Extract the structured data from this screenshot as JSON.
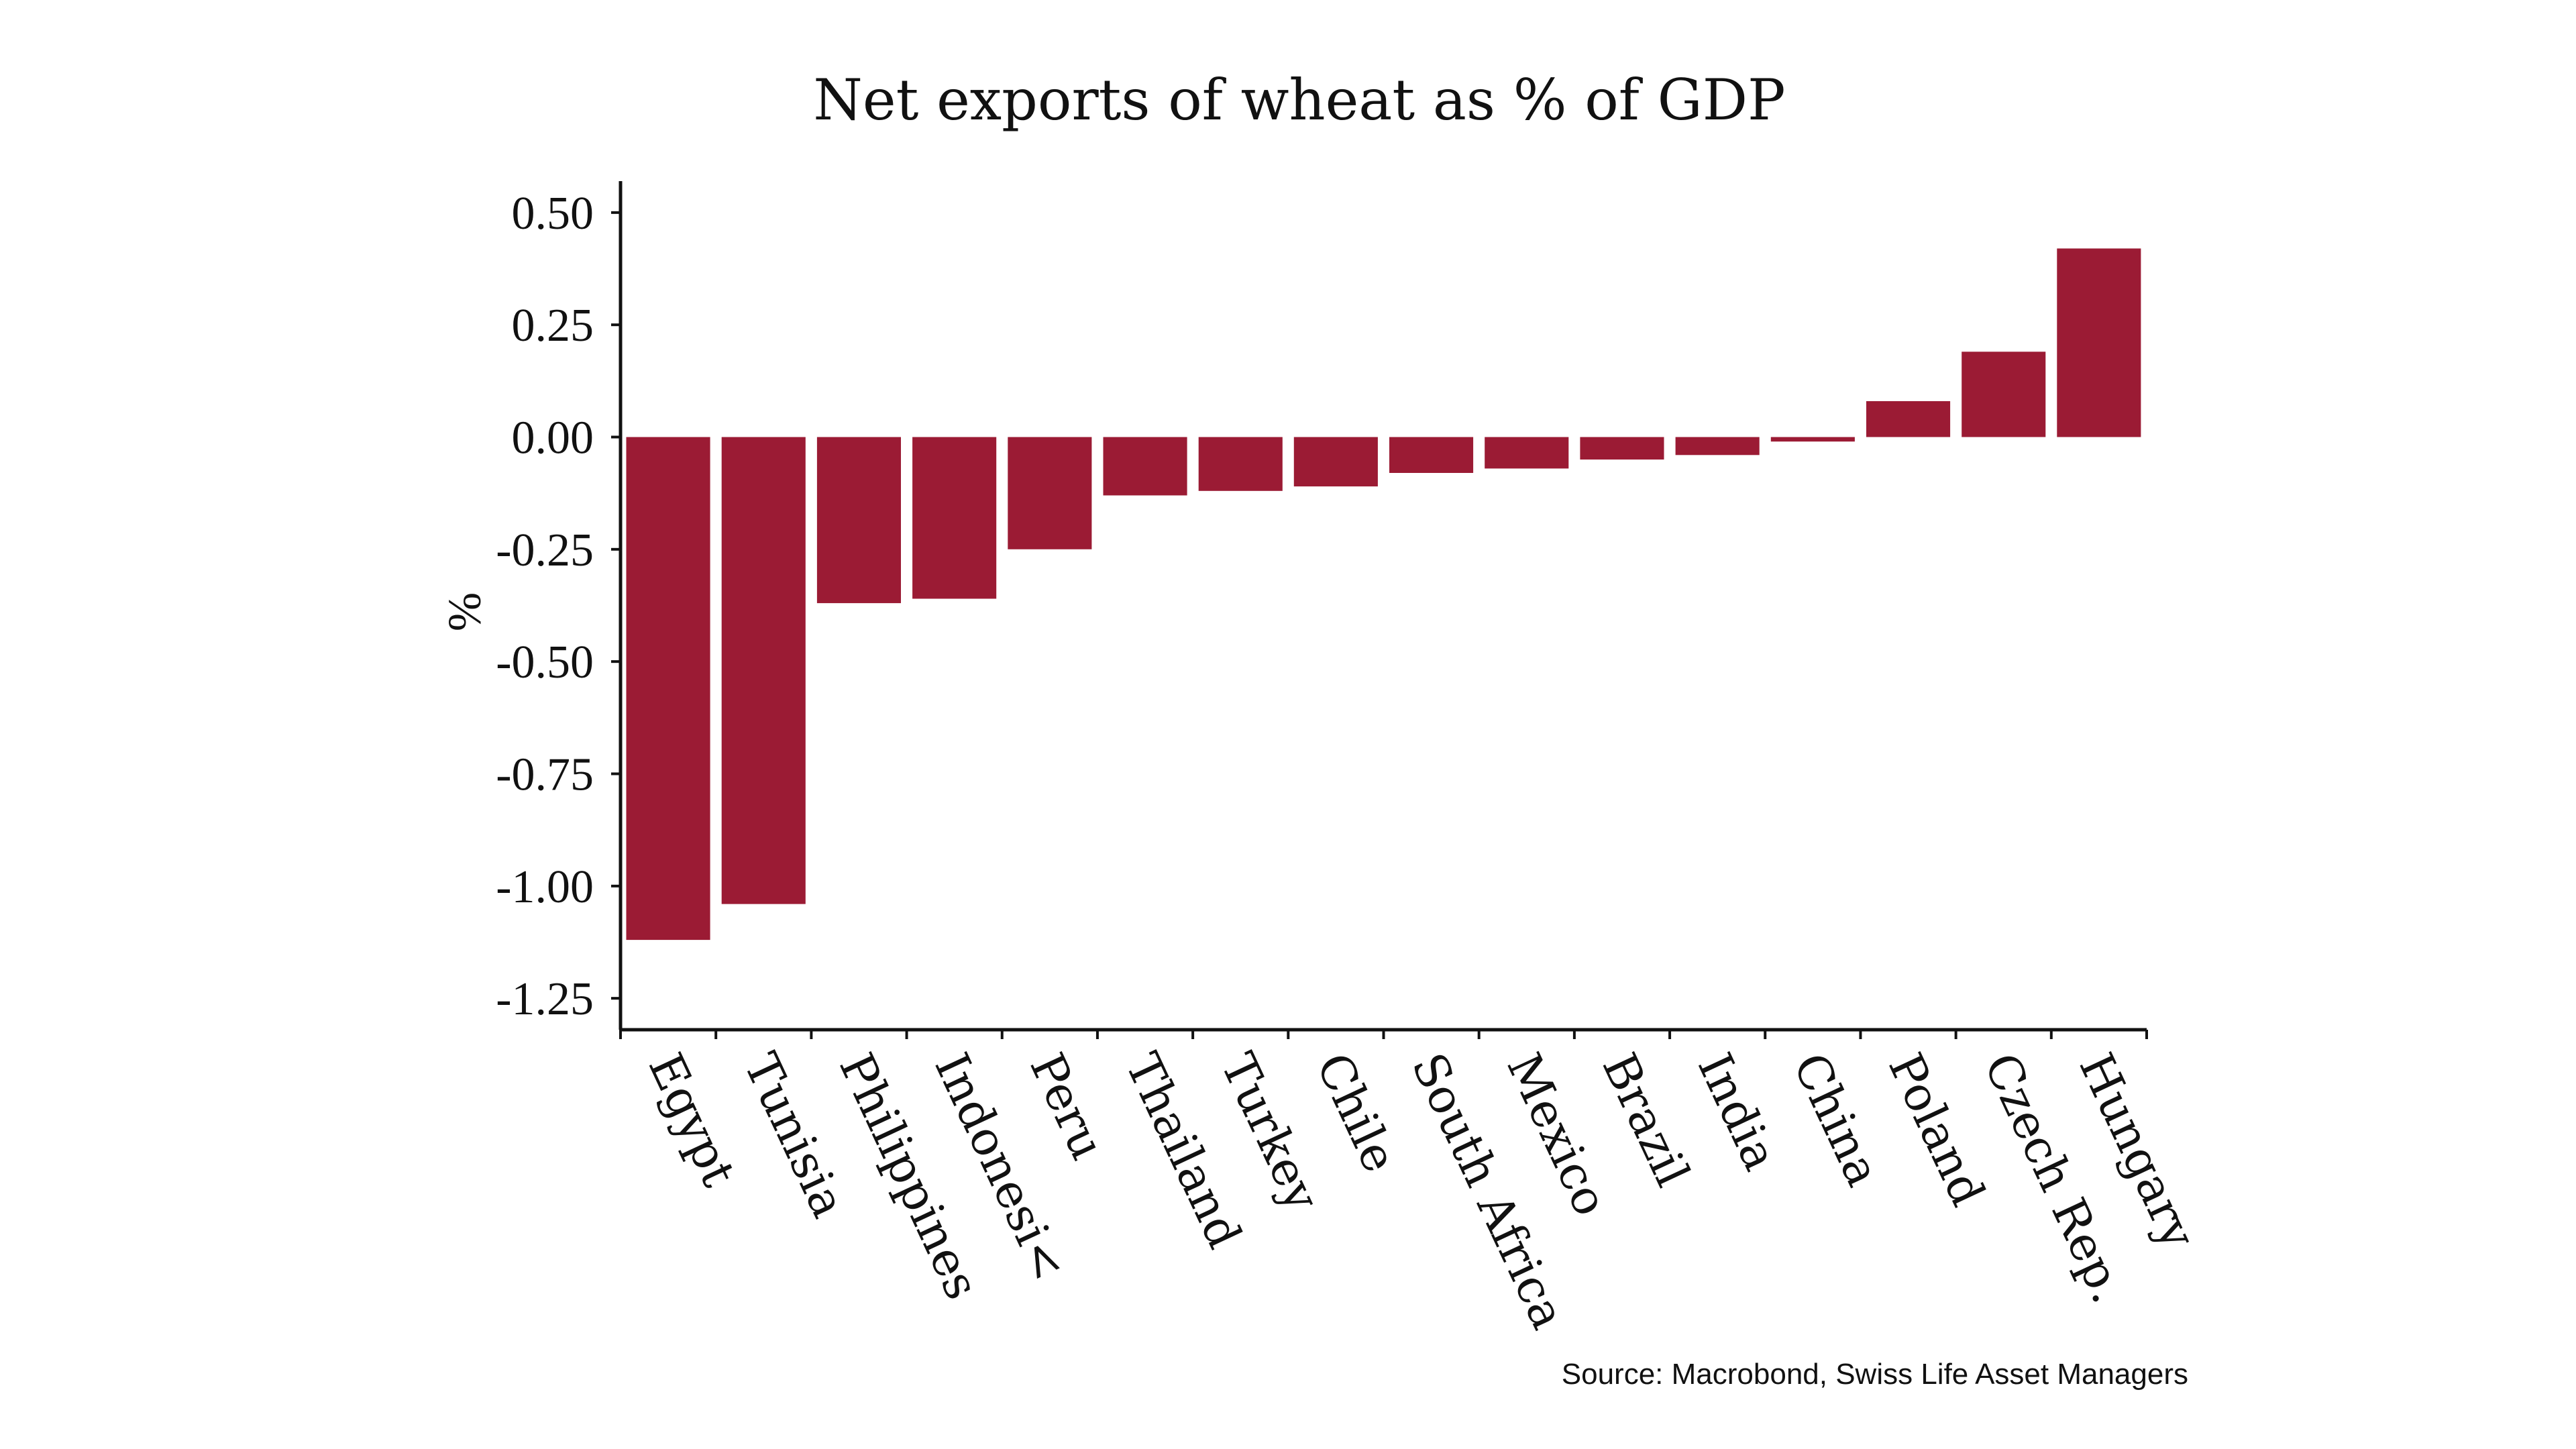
{
  "chart_data": {
    "type": "bar",
    "title": "Net exports of wheat as % of GDP",
    "ylabel": "%",
    "xlabel": "",
    "categories": [
      "Egypt",
      "Tunisia",
      "Philippines",
      "Indonesi<",
      "Peru",
      "Thailand",
      "Turkey",
      "Chile",
      "South Africa",
      "Mexico",
      "Brazil",
      "India",
      "China",
      "Poland",
      "Czech Rep.",
      "Hungary"
    ],
    "values": [
      -1.12,
      -1.04,
      -0.37,
      -0.36,
      -0.25,
      -0.13,
      -0.12,
      -0.11,
      -0.08,
      -0.07,
      -0.05,
      -0.04,
      -0.01,
      0.08,
      0.19,
      0.42
    ],
    "ylim": [
      -1.32,
      0.57
    ],
    "yticks": [
      0.5,
      0.25,
      0.0,
      -0.25,
      -0.5,
      -0.75,
      -1.0,
      -1.25
    ],
    "ytick_labels": [
      "0.50",
      "0.25",
      "0.00",
      "-0.25",
      "-0.50",
      "-0.75",
      "-1.00",
      "-1.25"
    ],
    "bar_color": "#9b1b34",
    "grid": false,
    "legend": "none",
    "source": "Source: Macrobond, Swiss Life Asset Managers"
  }
}
